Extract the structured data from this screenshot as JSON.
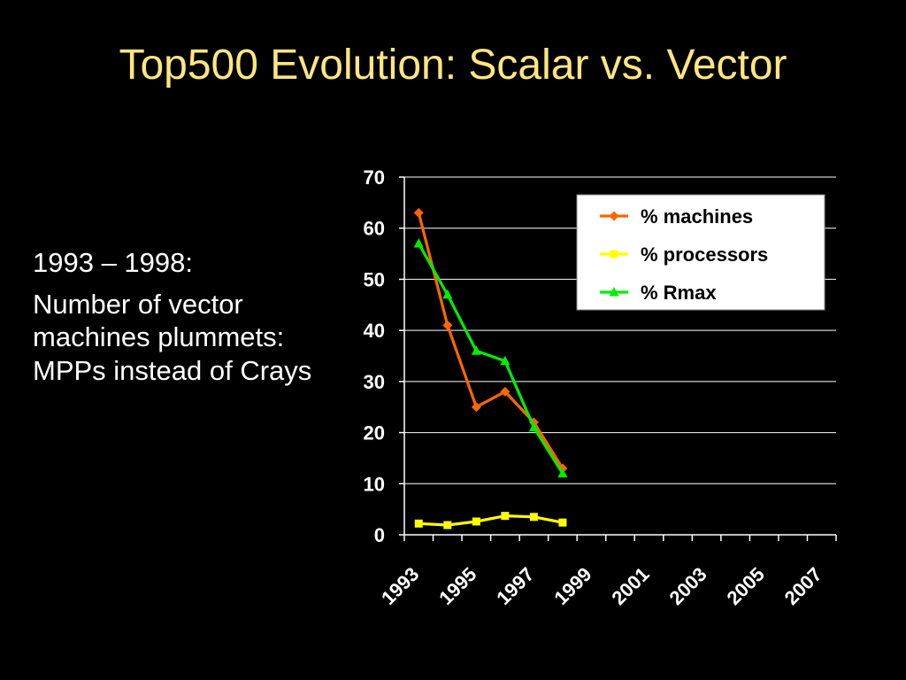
{
  "slide": {
    "title": "Top500 Evolution: Scalar vs. Vector",
    "body_lines": [
      "1993 – 1998:",
      "Number of vector machines plummets: MPPs instead of Crays"
    ]
  },
  "colors": {
    "background": "#000000",
    "title": "#ffe680",
    "text": "#ffffff",
    "grid": "#ffffff",
    "legend_bg": "#ffffff"
  },
  "chart_data": {
    "type": "line",
    "title": "",
    "xlabel": "",
    "ylabel": "",
    "x_ticks": [
      "1993",
      "1995",
      "1997",
      "1999",
      "2001",
      "2003",
      "2005",
      "2007"
    ],
    "xlim": [
      1993,
      2008
    ],
    "ylim": [
      0,
      70
    ],
    "y_ticks": [
      0,
      10,
      20,
      30,
      40,
      50,
      60,
      70
    ],
    "grid": "horizontal",
    "legend_position": "top-right",
    "series": [
      {
        "name": "% machines",
        "color": "#ff6600",
        "marker": "diamond",
        "x": [
          1993.5,
          1994.5,
          1995.5,
          1996.5,
          1997.5,
          1998.5
        ],
        "values": [
          63,
          41,
          25,
          28,
          22,
          13
        ]
      },
      {
        "name": "% processors",
        "color": "#ffff00",
        "marker": "square",
        "x": [
          1993.5,
          1994.5,
          1995.5,
          1996.5,
          1997.5,
          1998.5
        ],
        "values": [
          2.2,
          1.9,
          2.6,
          3.7,
          3.5,
          2.4
        ]
      },
      {
        "name": "% Rmax",
        "color": "#00ee00",
        "marker": "triangle",
        "x": [
          1993.5,
          1994.5,
          1995.5,
          1996.5,
          1997.5,
          1998.5
        ],
        "values": [
          57,
          47,
          36,
          34,
          21,
          12
        ]
      }
    ]
  }
}
